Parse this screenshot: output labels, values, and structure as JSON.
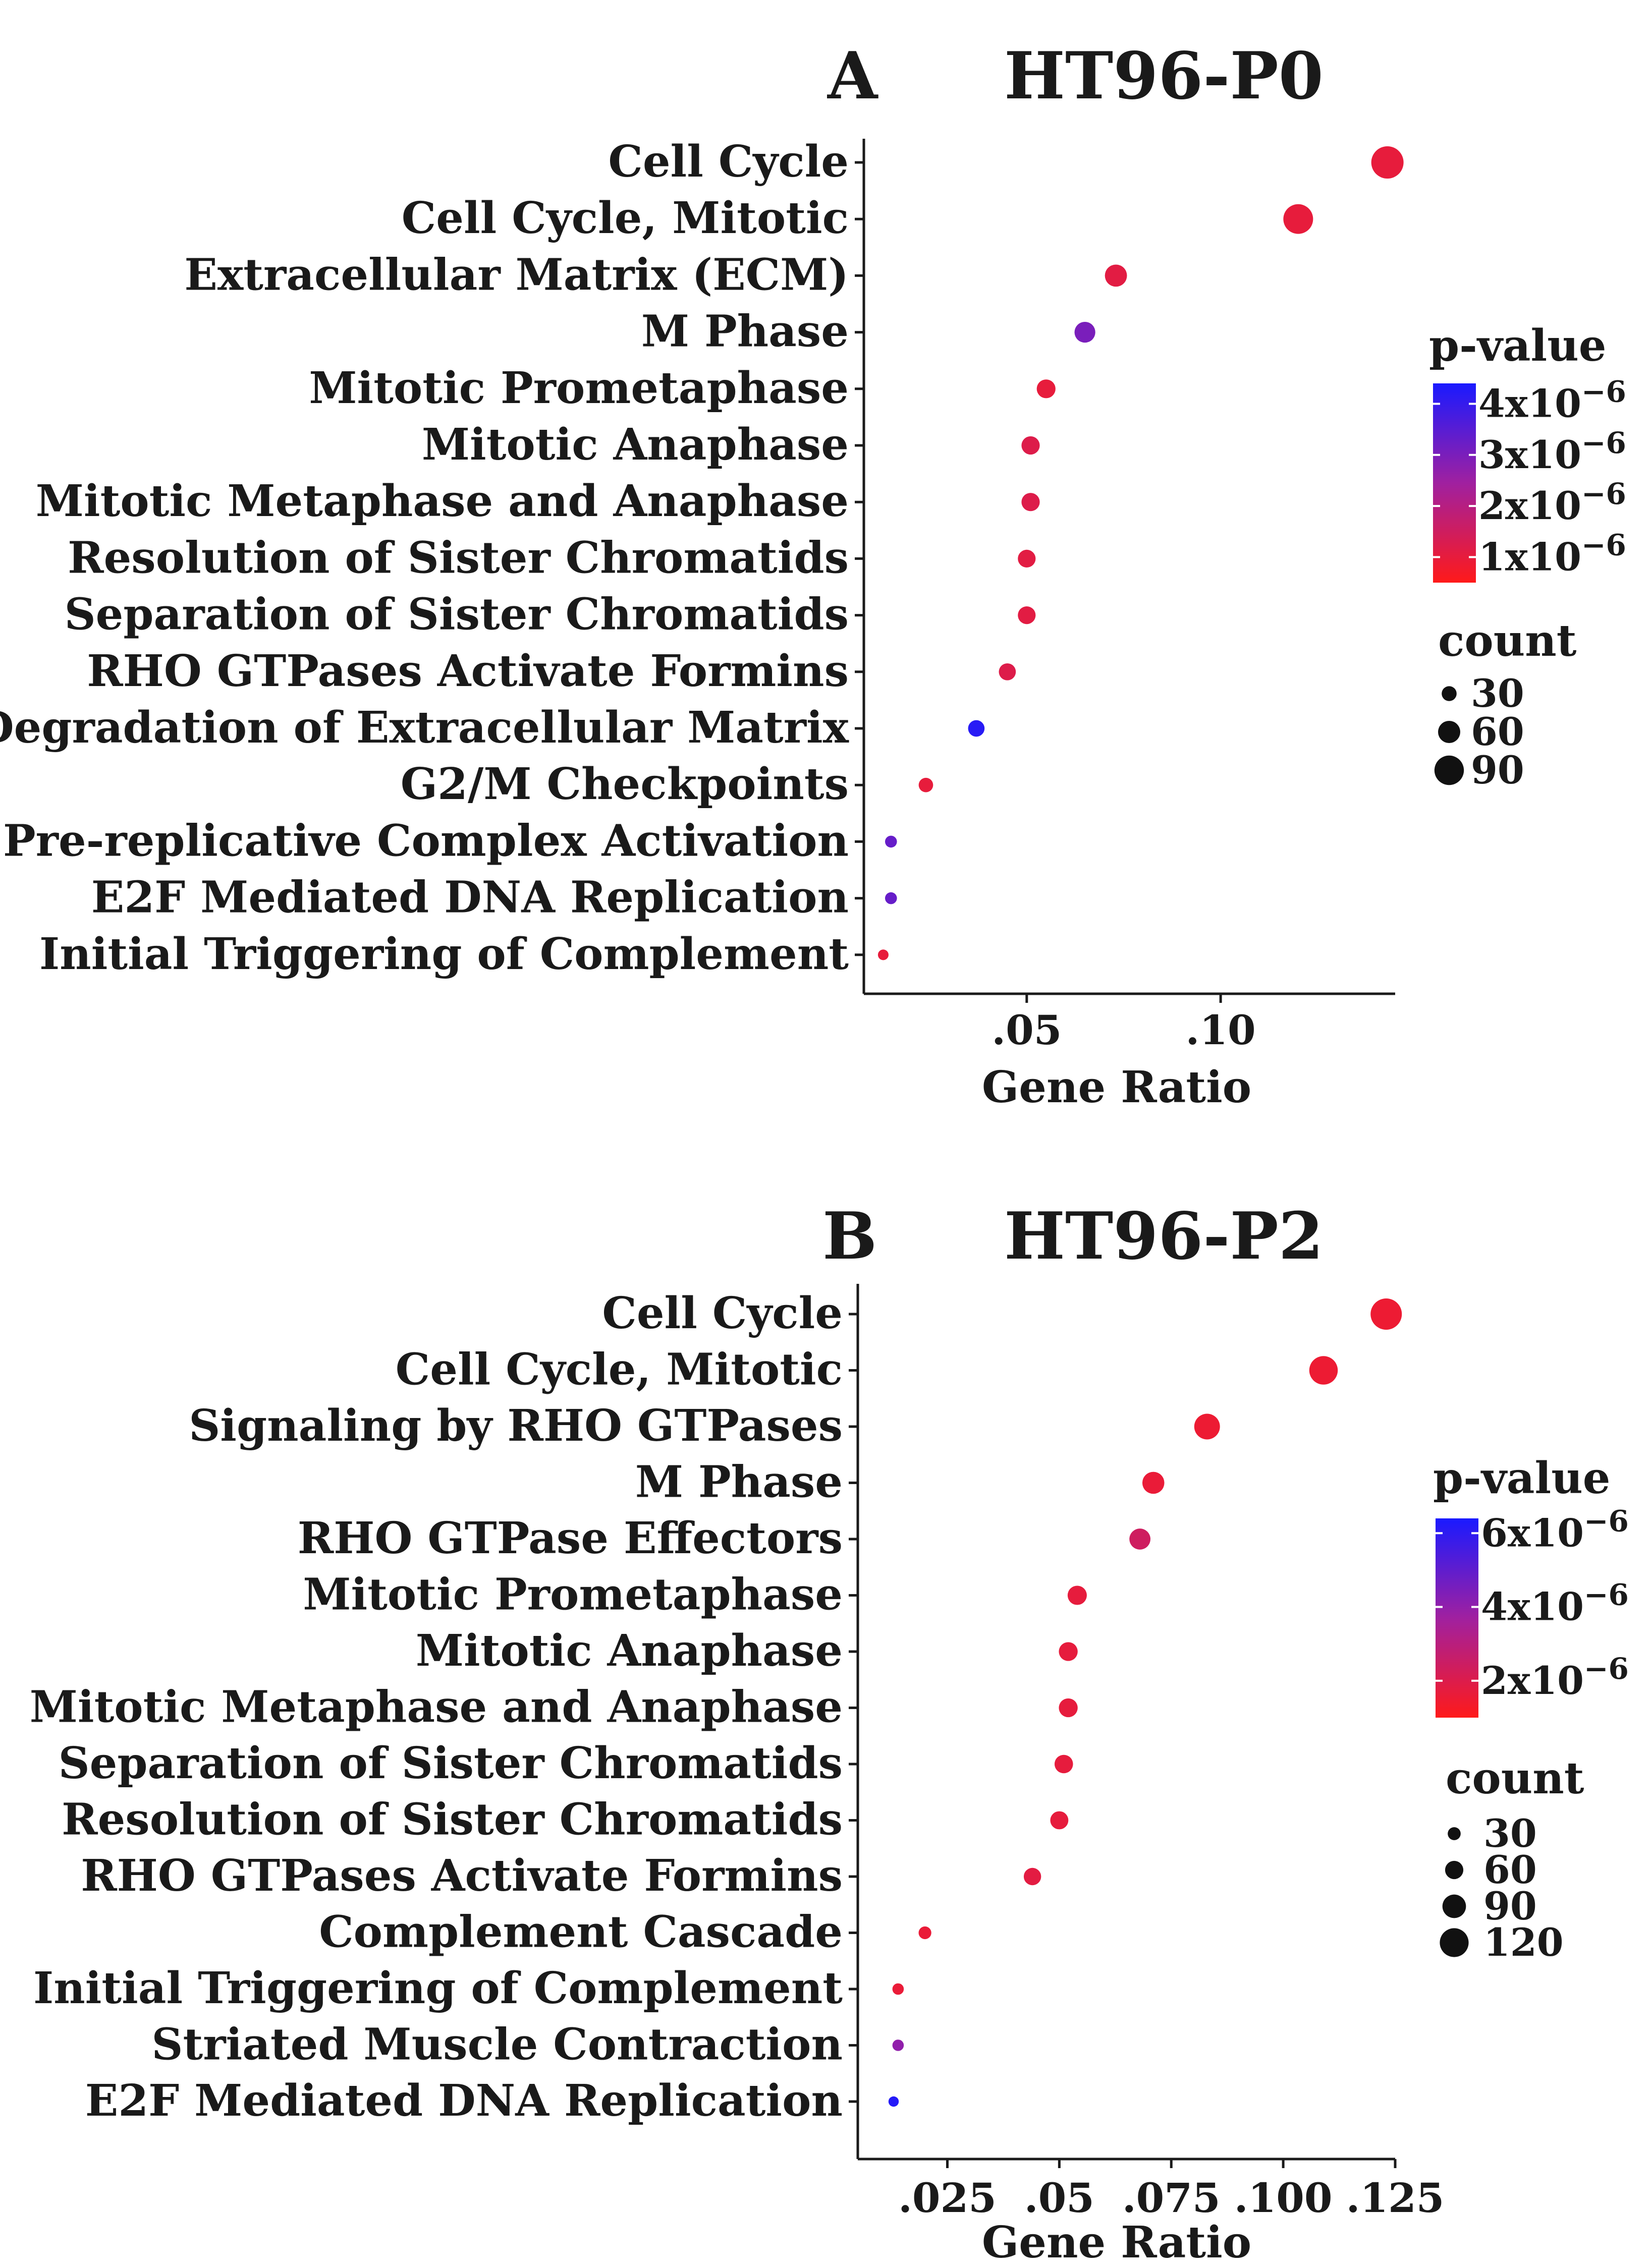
{
  "chart_data": [
    {
      "type": "scatter",
      "panel": "A",
      "title": "HT96-P0",
      "xlabel": "Gene Ratio",
      "xlim": [
        0.008,
        0.145
      ],
      "xticks": [
        0.05,
        0.1
      ],
      "xtick_labels": [
        ".05",
        ".10"
      ],
      "terms": [
        {
          "label": "Cell Cycle",
          "ratio": 0.143,
          "count": 95,
          "pvalue": 1e-06
        },
        {
          "label": "Cell Cycle, Mitotic",
          "ratio": 0.12,
          "count": 85,
          "pvalue": 1e-06
        },
        {
          "label": "Extracellular Matrix (ECM)",
          "ratio": 0.073,
          "count": 55,
          "pvalue": 1.1e-06
        },
        {
          "label": "M Phase",
          "ratio": 0.065,
          "count": 50,
          "pvalue": 3e-06
        },
        {
          "label": "Mitotic Prometaphase",
          "ratio": 0.055,
          "count": 42,
          "pvalue": 1e-06
        },
        {
          "label": "Mitotic Anaphase",
          "ratio": 0.051,
          "count": 40,
          "pvalue": 1.2e-06
        },
        {
          "label": "Mitotic Metaphase and  Anaphase",
          "ratio": 0.051,
          "count": 40,
          "pvalue": 1.2e-06
        },
        {
          "label": "Resolution of Sister Chromatids",
          "ratio": 0.05,
          "count": 38,
          "pvalue": 1.1e-06
        },
        {
          "label": "Separation of Sister Chromatids",
          "ratio": 0.05,
          "count": 38,
          "pvalue": 1.1e-06
        },
        {
          "label": "RHO GTPases Activate Formins",
          "ratio": 0.045,
          "count": 35,
          "pvalue": 1.2e-06
        },
        {
          "label": "Degradation of Extracellular Matrix",
          "ratio": 0.037,
          "count": 33,
          "pvalue": 4.2e-06
        },
        {
          "label": "G2/M Checkpoints",
          "ratio": 0.024,
          "count": 25,
          "pvalue": 1e-06
        },
        {
          "label": "Pre-replicative Complex Activation",
          "ratio": 0.015,
          "count": 15,
          "pvalue": 3.3e-06
        },
        {
          "label": "E2F Mediated DNA Replication",
          "ratio": 0.015,
          "count": 15,
          "pvalue": 3.3e-06
        },
        {
          "label": "Initial Triggering of Complement",
          "ratio": 0.013,
          "count": 10,
          "pvalue": 1e-06
        }
      ],
      "color_legend": {
        "title": "p-value",
        "range": [
          5e-07,
          4.4e-06
        ],
        "ticks": [
          4e-06,
          3e-06,
          2e-06,
          1e-06
        ],
        "tick_bases": [
          "4x10",
          "3x10",
          "2x10",
          "1x10"
        ],
        "tick_exponent": "−6"
      },
      "size_legend": {
        "title": "count",
        "values": [
          30,
          60,
          90
        ],
        "labels": [
          "30",
          "60",
          "90"
        ]
      }
    },
    {
      "type": "scatter",
      "panel": "B",
      "title": "HT96-P2",
      "xlabel": "Gene Ratio",
      "xlim": [
        0.005,
        0.125
      ],
      "xticks": [
        0.025,
        0.05,
        0.075,
        0.1,
        0.125
      ],
      "xtick_labels": [
        ".025",
        ".05",
        ".075",
        ".100",
        ".125"
      ],
      "terms": [
        {
          "label": "Cell Cycle",
          "ratio": 0.123,
          "count": 125,
          "pvalue": 1.5e-06
        },
        {
          "label": "Cell Cycle, Mitotic",
          "ratio": 0.109,
          "count": 110,
          "pvalue": 1.5e-06
        },
        {
          "label": "Signaling by RHO GTPases",
          "ratio": 0.083,
          "count": 95,
          "pvalue": 1.5e-06
        },
        {
          "label": "M Phase",
          "ratio": 0.071,
          "count": 75,
          "pvalue": 1.6e-06
        },
        {
          "label": "RHO GTPase Effectors",
          "ratio": 0.068,
          "count": 70,
          "pvalue": 2.4e-06
        },
        {
          "label": "Mitotic Prometaphase",
          "ratio": 0.054,
          "count": 60,
          "pvalue": 1.7e-06
        },
        {
          "label": "Mitotic Anaphase",
          "ratio": 0.052,
          "count": 58,
          "pvalue": 1.7e-06
        },
        {
          "label": "Mitotic Metaphase and Anaphase",
          "ratio": 0.052,
          "count": 58,
          "pvalue": 1.7e-06
        },
        {
          "label": "Separation of Sister Chromatids",
          "ratio": 0.051,
          "count": 56,
          "pvalue": 1.7e-06
        },
        {
          "label": "Resolution of Sister Chromatids",
          "ratio": 0.05,
          "count": 54,
          "pvalue": 1.7e-06
        },
        {
          "label": "RHO GTPases Activate Formins",
          "ratio": 0.044,
          "count": 50,
          "pvalue": 1.8e-06
        },
        {
          "label": "Complement Cascade",
          "ratio": 0.02,
          "count": 25,
          "pvalue": 1.6e-06
        },
        {
          "label": "Initial Triggering of Complement",
          "ratio": 0.014,
          "count": 18,
          "pvalue": 1.6e-06
        },
        {
          "label": "Striated Muscle Contraction",
          "ratio": 0.014,
          "count": 18,
          "pvalue": 4e-06
        },
        {
          "label": "E2F Mediated DNA Replication",
          "ratio": 0.013,
          "count": 12,
          "pvalue": 6.2e-06
        }
      ],
      "color_legend": {
        "title": "p-value",
        "range": [
          1e-06,
          6.4e-06
        ],
        "ticks": [
          6e-06,
          4e-06,
          2e-06
        ],
        "tick_bases": [
          "6x10",
          "4x10",
          "2x10"
        ],
        "tick_exponent": "−6"
      },
      "size_legend": {
        "title": "count",
        "values": [
          30,
          60,
          90,
          120
        ],
        "labels": [
          "30",
          "60",
          "90",
          "120"
        ]
      }
    }
  ],
  "colors": {
    "low": "#ff1a1a",
    "mid": "#a020a0",
    "high": "#1a1aff",
    "axis": "#1a1a1a"
  }
}
